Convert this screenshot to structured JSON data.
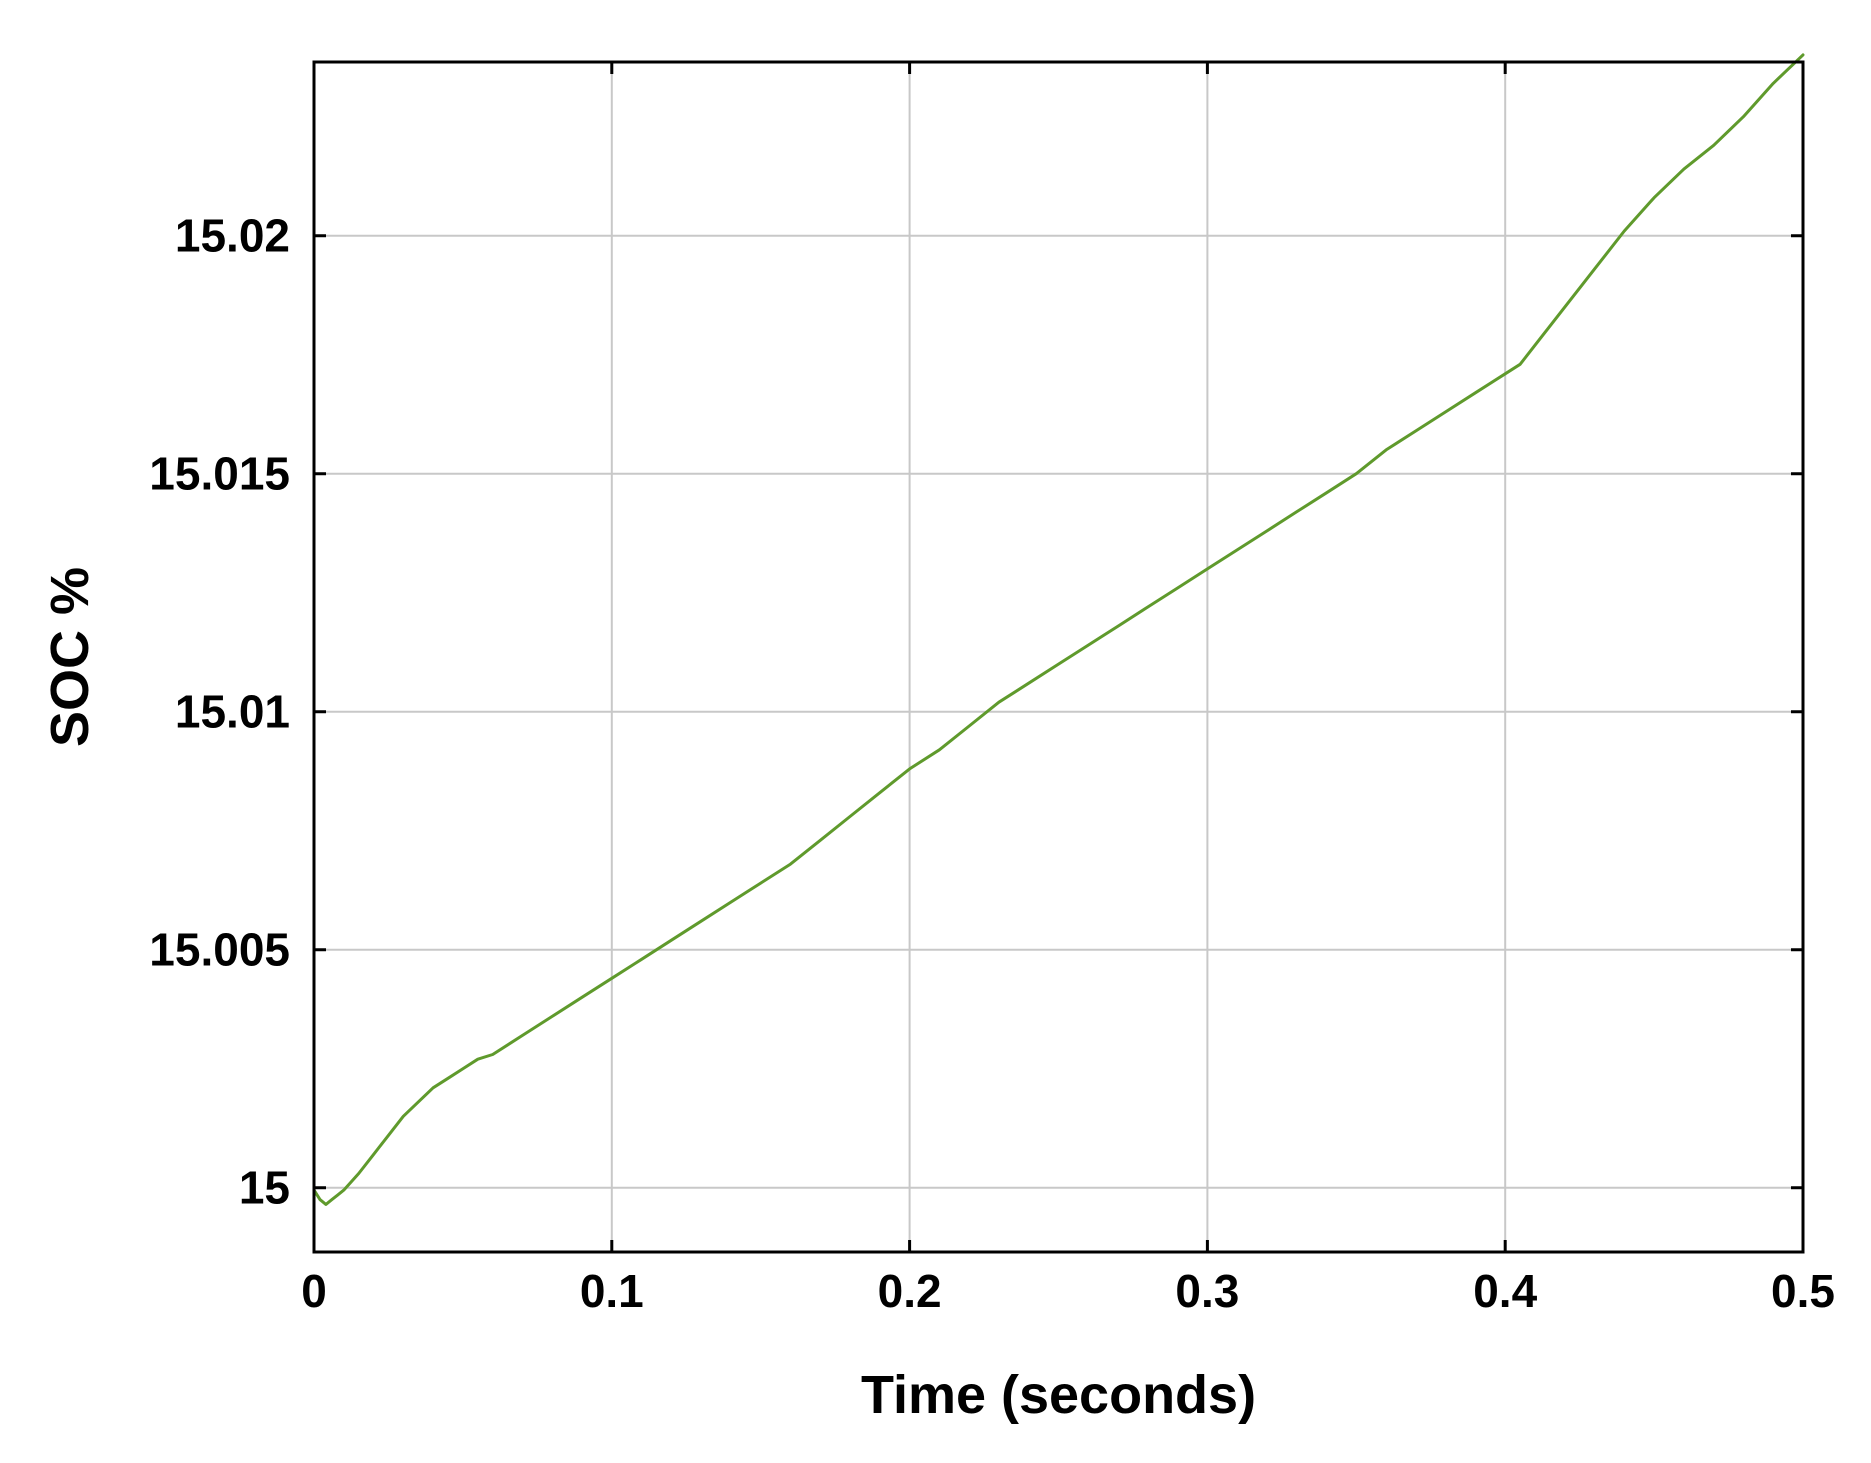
{
  "chart_data": {
    "type": "line",
    "title": "",
    "xlabel": "Time (seconds)",
    "ylabel": "SOC %",
    "xlim": [
      0,
      0.5
    ],
    "ylim": [
      14.99865,
      15.02365
    ],
    "xticks": [
      0,
      0.1,
      0.2,
      0.3,
      0.4,
      0.5
    ],
    "xtick_labels": [
      "0",
      "0.1",
      "0.2",
      "0.3",
      "0.4",
      "0.5"
    ],
    "yticks": [
      15,
      15.005,
      15.01,
      15.015,
      15.02
    ],
    "ytick_labels": [
      "15",
      "15.005",
      "15.01",
      "15.015",
      "15.02"
    ],
    "grid": true,
    "line_color": "#5f9a2c",
    "series": [
      {
        "x": [
          0,
          0.002,
          0.004,
          0.006,
          0.008,
          0.01,
          0.015,
          0.02,
          0.025,
          0.03,
          0.035,
          0.04,
          0.045,
          0.05,
          0.055,
          0.06,
          0.07,
          0.08,
          0.09,
          0.1,
          0.11,
          0.12,
          0.13,
          0.14,
          0.15,
          0.16,
          0.17,
          0.18,
          0.19,
          0.2,
          0.21,
          0.22,
          0.23,
          0.24,
          0.25,
          0.26,
          0.27,
          0.28,
          0.29,
          0.3,
          0.31,
          0.32,
          0.33,
          0.34,
          0.35,
          0.36,
          0.37,
          0.38,
          0.39,
          0.4,
          0.405,
          0.41,
          0.42,
          0.43,
          0.44,
          0.45,
          0.46,
          0.47,
          0.48,
          0.49,
          0.5
        ],
        "values": [
          14.99995,
          14.99975,
          14.99965,
          14.99975,
          14.99985,
          14.99995,
          15.0003,
          15.0007,
          15.0011,
          15.0015,
          15.0018,
          15.0021,
          15.0023,
          15.0025,
          15.0027,
          15.0028,
          15.0032,
          15.0036,
          15.004,
          15.0044,
          15.0048,
          15.0052,
          15.0056,
          15.006,
          15.0064,
          15.0068,
          15.0073,
          15.0078,
          15.0083,
          15.0088,
          15.0092,
          15.0097,
          15.0102,
          15.0106,
          15.011,
          15.0114,
          15.0118,
          15.0122,
          15.0126,
          15.013,
          15.0134,
          15.0138,
          15.0142,
          15.0146,
          15.015,
          15.0155,
          15.0159,
          15.0163,
          15.0167,
          15.0171,
          15.0173,
          15.0177,
          15.0185,
          15.0193,
          15.0201,
          15.0208,
          15.0214,
          15.0219,
          15.0225,
          15.0232,
          15.0238
        ]
      }
    ]
  }
}
